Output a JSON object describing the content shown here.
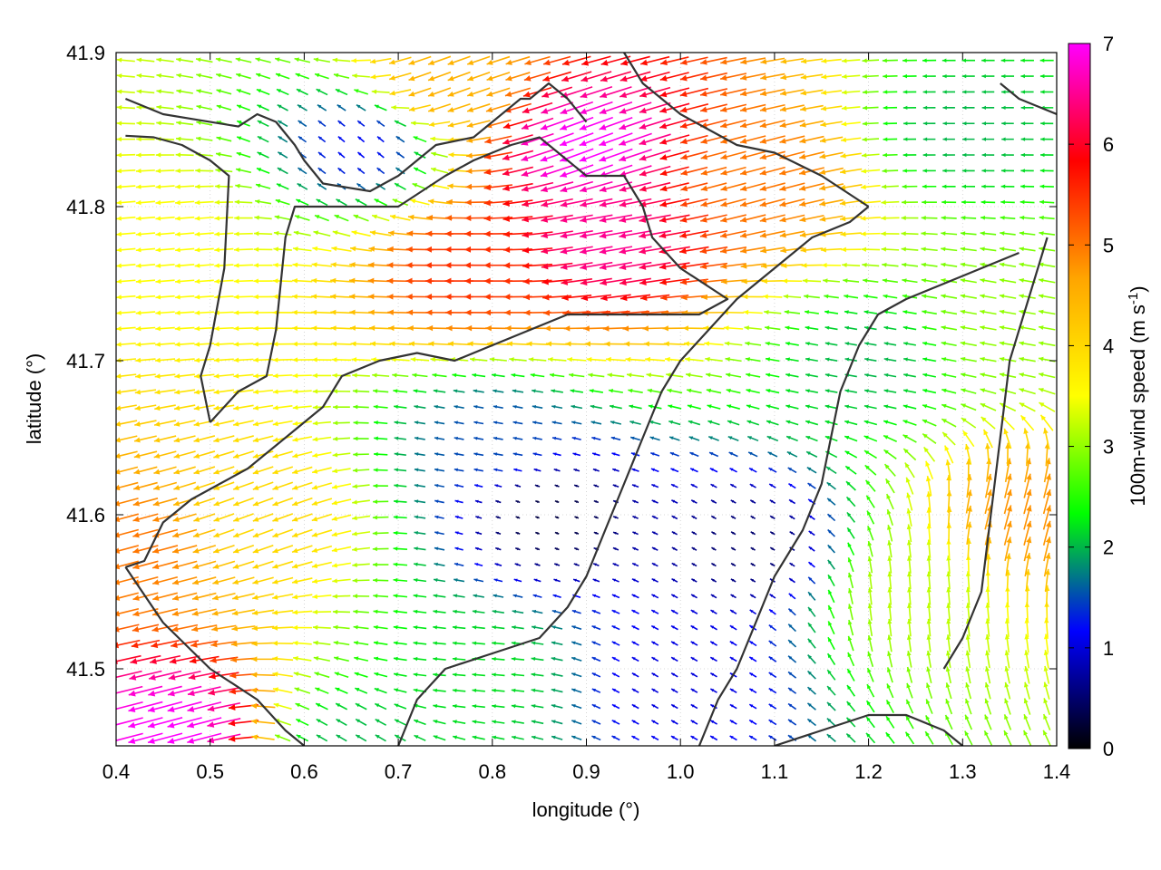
{
  "chart_data": {
    "type": "vector-field",
    "xlabel": "longitude (°)",
    "ylabel": "latitude (°)",
    "colorbar": {
      "label_main": "100m-wind speed (m s",
      "label_sup": "-1",
      "label_close": ")",
      "range": [
        0,
        7
      ],
      "ticks": [
        "0",
        "1",
        "2",
        "3",
        "4",
        "5",
        "6",
        "7"
      ],
      "tick_values": [
        0,
        1,
        2,
        3,
        4,
        5,
        6,
        7
      ],
      "colormap": [
        "#000000",
        "#0000ff",
        "#00ff00",
        "#ffff00",
        "#ffa500",
        "#ff0000",
        "#ff00ff"
      ]
    },
    "xlim": [
      0.4,
      1.4
    ],
    "ylim": [
      41.45,
      41.9
    ],
    "xticks": [
      "0.4",
      "0.5",
      "0.6",
      "0.7",
      "0.8",
      "0.9",
      "1.0",
      "1.1",
      "1.2",
      "1.3",
      "1.4"
    ],
    "xtick_values": [
      0.4,
      0.5,
      0.6,
      0.7,
      0.8,
      0.9,
      1.0,
      1.1,
      1.2,
      1.3,
      1.4
    ],
    "yticks": [
      "41.5",
      "41.6",
      "41.7",
      "41.8",
      "41.9"
    ],
    "ytick_values": [
      41.5,
      41.6,
      41.7,
      41.8,
      41.9
    ],
    "grid": true,
    "wind_field_centers": [
      {
        "lon": 0.46,
        "lat": 41.46,
        "speed": 7.0,
        "dir_deg": 195
      },
      {
        "lon": 0.9,
        "lat": 41.84,
        "speed": 7.0,
        "dir_deg": 200
      },
      {
        "lon": 0.92,
        "lat": 41.78,
        "speed": 6.5,
        "dir_deg": 190
      },
      {
        "lon": 0.78,
        "lat": 41.76,
        "speed": 5.5,
        "dir_deg": 180
      },
      {
        "lon": 1.08,
        "lat": 41.82,
        "speed": 5.0,
        "dir_deg": 195
      },
      {
        "lon": 0.75,
        "lat": 41.88,
        "speed": 4.5,
        "dir_deg": 200
      },
      {
        "lon": 0.42,
        "lat": 41.58,
        "speed": 5.0,
        "dir_deg": 195
      },
      {
        "lon": 0.55,
        "lat": 41.6,
        "speed": 4.0,
        "dir_deg": 200
      },
      {
        "lon": 0.45,
        "lat": 41.78,
        "speed": 3.5,
        "dir_deg": 185
      },
      {
        "lon": 0.86,
        "lat": 41.6,
        "speed": 0.3,
        "dir_deg": 160
      },
      {
        "lon": 1.07,
        "lat": 41.58,
        "speed": 0.5,
        "dir_deg": 150
      },
      {
        "lon": 0.8,
        "lat": 41.65,
        "speed": 1.5,
        "dir_deg": 170
      },
      {
        "lon": 1.2,
        "lat": 41.7,
        "speed": 2.0,
        "dir_deg": 170
      },
      {
        "lon": 1.25,
        "lat": 41.55,
        "speed": 3.2,
        "dir_deg": 95
      },
      {
        "lon": 1.37,
        "lat": 41.6,
        "speed": 4.8,
        "dir_deg": 75
      },
      {
        "lon": 1.3,
        "lat": 41.85,
        "speed": 2.0,
        "dir_deg": 180
      },
      {
        "lon": 1.35,
        "lat": 41.72,
        "speed": 3.0,
        "dir_deg": 170
      },
      {
        "lon": 0.78,
        "lat": 41.5,
        "speed": 2.2,
        "dir_deg": 175
      },
      {
        "lon": 0.65,
        "lat": 41.45,
        "speed": 2.0,
        "dir_deg": 150
      },
      {
        "lon": 0.66,
        "lat": 41.84,
        "speed": 1.2,
        "dir_deg": 140
      },
      {
        "lon": 1.0,
        "lat": 41.49,
        "speed": 1.0,
        "dir_deg": 150
      }
    ],
    "contours": [
      [
        [
          0.41,
          41.87
        ],
        [
          0.45,
          41.86
        ],
        [
          0.49,
          41.856
        ],
        [
          0.53,
          41.852
        ],
        [
          0.55,
          41.86
        ],
        [
          0.57,
          41.855
        ],
        [
          0.59,
          41.84
        ],
        [
          0.6,
          41.83
        ],
        [
          0.62,
          41.815
        ],
        [
          0.67,
          41.81
        ],
        [
          0.7,
          41.82
        ],
        [
          0.72,
          41.83
        ],
        [
          0.74,
          41.84
        ],
        [
          0.78,
          41.845
        ],
        [
          0.8,
          41.855
        ],
        [
          0.83,
          41.87
        ],
        [
          0.84,
          41.87
        ],
        [
          0.86,
          41.88
        ],
        [
          0.88,
          41.87
        ],
        [
          0.9,
          41.855
        ]
      ],
      [
        [
          0.41,
          41.846
        ],
        [
          0.44,
          41.845
        ],
        [
          0.47,
          41.84
        ],
        [
          0.5,
          41.83
        ],
        [
          0.52,
          41.82
        ],
        [
          0.515,
          41.76
        ],
        [
          0.5,
          41.71
        ],
        [
          0.49,
          41.69
        ],
        [
          0.5,
          41.66
        ]
      ],
      [
        [
          0.5,
          41.66
        ],
        [
          0.53,
          41.68
        ],
        [
          0.56,
          41.69
        ],
        [
          0.57,
          41.72
        ],
        [
          0.58,
          41.78
        ],
        [
          0.59,
          41.8
        ],
        [
          0.62,
          41.8
        ],
        [
          0.7,
          41.8
        ],
        [
          0.75,
          41.82
        ],
        [
          0.78,
          41.83
        ],
        [
          0.82,
          41.84
        ],
        [
          0.85,
          41.845
        ],
        [
          0.88,
          41.83
        ],
        [
          0.9,
          41.82
        ],
        [
          0.94,
          41.82
        ],
        [
          0.96,
          41.8
        ],
        [
          0.97,
          41.78
        ],
        [
          1.0,
          41.76
        ],
        [
          1.05,
          41.74
        ],
        [
          1.02,
          41.73
        ],
        [
          0.96,
          41.73
        ],
        [
          0.88,
          41.73
        ],
        [
          0.84,
          41.72
        ],
        [
          0.8,
          41.71
        ],
        [
          0.76,
          41.7
        ],
        [
          0.72,
          41.705
        ],
        [
          0.68,
          41.7
        ],
        [
          0.64,
          41.69
        ],
        [
          0.62,
          41.67
        ],
        [
          0.58,
          41.65
        ],
        [
          0.54,
          41.63
        ],
        [
          0.51,
          41.62
        ],
        [
          0.48,
          41.61
        ],
        [
          0.45,
          41.595
        ],
        [
          0.43,
          41.57
        ],
        [
          0.41,
          41.566
        ]
      ],
      [
        [
          0.41,
          41.566
        ],
        [
          0.45,
          41.53
        ],
        [
          0.5,
          41.5
        ],
        [
          0.55,
          41.48
        ],
        [
          0.58,
          41.46
        ],
        [
          0.6,
          41.45
        ]
      ],
      [
        [
          0.7,
          41.45
        ],
        [
          0.72,
          41.48
        ],
        [
          0.75,
          41.5
        ],
        [
          0.8,
          41.51
        ],
        [
          0.85,
          41.52
        ],
        [
          0.88,
          41.54
        ],
        [
          0.9,
          41.56
        ],
        [
          0.92,
          41.59
        ],
        [
          0.94,
          41.62
        ],
        [
          0.96,
          41.65
        ],
        [
          0.98,
          41.68
        ],
        [
          1.0,
          41.7
        ],
        [
          1.03,
          41.72
        ],
        [
          1.06,
          41.74
        ],
        [
          1.1,
          41.76
        ],
        [
          1.14,
          41.78
        ],
        [
          1.18,
          41.79
        ],
        [
          1.2,
          41.8
        ]
      ],
      [
        [
          1.02,
          41.45
        ],
        [
          1.04,
          41.48
        ],
        [
          1.06,
          41.5
        ],
        [
          1.08,
          41.53
        ],
        [
          1.1,
          41.56
        ],
        [
          1.13,
          41.59
        ],
        [
          1.15,
          41.62
        ],
        [
          1.16,
          41.65
        ],
        [
          1.17,
          41.68
        ],
        [
          1.19,
          41.71
        ],
        [
          1.21,
          41.73
        ],
        [
          1.24,
          41.74
        ],
        [
          1.28,
          41.75
        ],
        [
          1.32,
          41.76
        ],
        [
          1.36,
          41.77
        ]
      ],
      [
        [
          1.1,
          41.45
        ],
        [
          1.15,
          41.46
        ],
        [
          1.2,
          41.47
        ],
        [
          1.24,
          41.47
        ],
        [
          1.28,
          41.46
        ],
        [
          1.3,
          41.45
        ]
      ],
      [
        [
          1.28,
          41.5
        ],
        [
          1.3,
          41.52
        ],
        [
          1.32,
          41.55
        ],
        [
          1.33,
          41.6
        ],
        [
          1.34,
          41.65
        ],
        [
          1.35,
          41.7
        ],
        [
          1.37,
          41.74
        ],
        [
          1.39,
          41.78
        ]
      ],
      [
        [
          0.94,
          41.9
        ],
        [
          0.96,
          41.88
        ],
        [
          0.98,
          41.87
        ],
        [
          1.0,
          41.86
        ],
        [
          1.03,
          41.85
        ],
        [
          1.06,
          41.84
        ],
        [
          1.1,
          41.835
        ],
        [
          1.15,
          41.82
        ],
        [
          1.2,
          41.8
        ]
      ],
      [
        [
          1.34,
          41.88
        ],
        [
          1.36,
          41.87
        ],
        [
          1.38,
          41.865
        ],
        [
          1.4,
          41.86
        ]
      ]
    ]
  }
}
